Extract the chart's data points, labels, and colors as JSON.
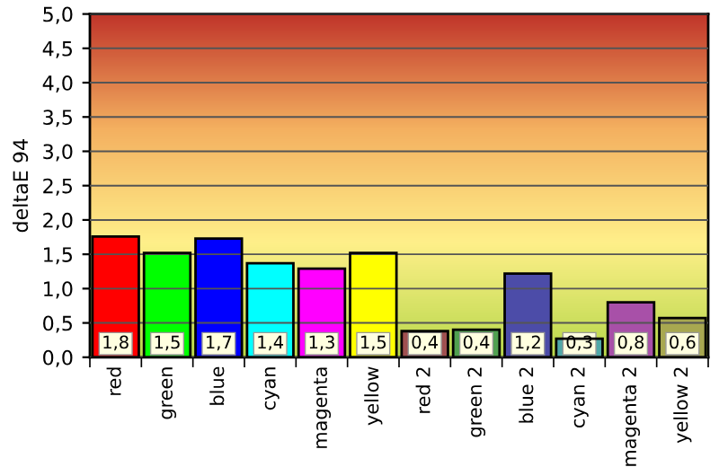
{
  "chart_data": {
    "type": "bar",
    "ylabel": "deltaE 94",
    "categories": [
      "red",
      "green",
      "blue",
      "cyan",
      "magenta",
      "yellow",
      "red 2",
      "green 2",
      "blue 2",
      "cyan 2",
      "magenta 2",
      "yellow 2"
    ],
    "values": [
      1.76,
      1.52,
      1.73,
      1.37,
      1.29,
      1.52,
      0.38,
      0.4,
      1.22,
      0.27,
      0.8,
      0.57
    ],
    "colors": [
      "#ff0000",
      "#00ff00",
      "#0000ff",
      "#00ffff",
      "#ff00ff",
      "#ffff00",
      "#a05050",
      "#50a050",
      "#4c4ca8",
      "#50a8a8",
      "#a850a8",
      "#a8a850"
    ],
    "value_labels": [
      "1,8",
      "1,5",
      "1,7",
      "1,4",
      "1,3",
      "1,5",
      "0,4",
      "0,4",
      "1,2",
      "0,3",
      "0,8",
      "0,6"
    ],
    "ylim": [
      0,
      5
    ],
    "yticks": [
      {
        "value": 0,
        "label": "0,0"
      },
      {
        "value": 0.5,
        "label": "0,5"
      },
      {
        "value": 1,
        "label": "1,0"
      },
      {
        "value": 1.5,
        "label": "1,5"
      },
      {
        "value": 2,
        "label": "2,0"
      },
      {
        "value": 2.5,
        "label": "2,5"
      },
      {
        "value": 3,
        "label": "3,0"
      },
      {
        "value": 3.5,
        "label": "3,5"
      },
      {
        "value": 4,
        "label": "4,0"
      },
      {
        "value": 4.5,
        "label": "4,5"
      },
      {
        "value": 5,
        "label": "5,0"
      }
    ],
    "grid": "y",
    "legend": false
  }
}
